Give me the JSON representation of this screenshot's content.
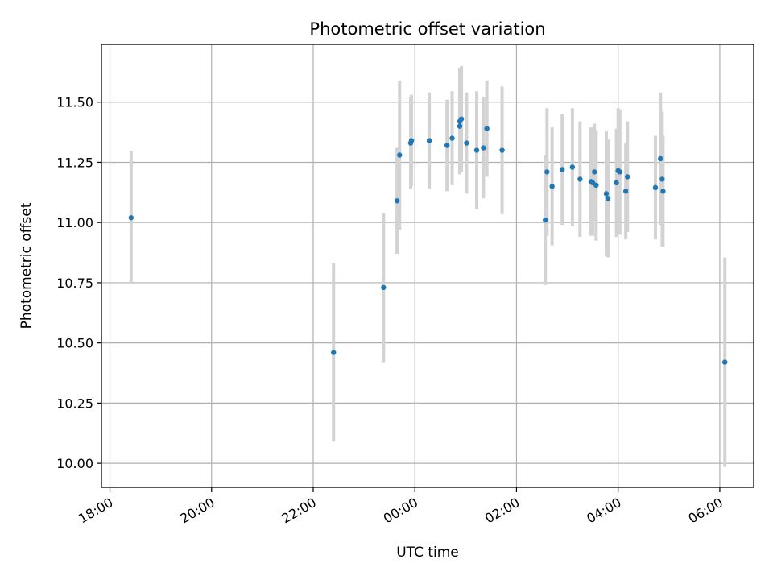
{
  "chart_data": {
    "type": "scatter",
    "title": "Photometric offset variation",
    "xlabel": "UTC time",
    "ylabel": "Photometric offset",
    "x_axis": {
      "type": "time",
      "range": [
        "17:50",
        "06:40"
      ],
      "ticks": [
        "18:00",
        "20:00",
        "22:00",
        "00:00",
        "02:00",
        "04:00",
        "06:00"
      ]
    },
    "y_axis": {
      "range": [
        9.9,
        11.74
      ],
      "ticks": [
        "10.00",
        "10.25",
        "10.50",
        "10.75",
        "11.00",
        "11.25",
        "11.50"
      ]
    },
    "grid": true,
    "marker_color": "#1f77b4",
    "errorbar_color": "#d3d3d3",
    "points": [
      {
        "time": "18:25",
        "y": 11.02,
        "err": 0.275
      },
      {
        "time": "22:24",
        "y": 10.46,
        "err": 0.37
      },
      {
        "time": "23:23",
        "y": 10.73,
        "err": 0.31
      },
      {
        "time": "23:39",
        "y": 11.09,
        "err": 0.22
      },
      {
        "time": "23:42",
        "y": 11.28,
        "err": 0.31
      },
      {
        "time": "23:55",
        "y": 11.33,
        "err": 0.19
      },
      {
        "time": "23:56",
        "y": 11.34,
        "err": 0.19
      },
      {
        "time": "00:17",
        "y": 11.34,
        "err": 0.2
      },
      {
        "time": "00:38",
        "y": 11.32,
        "err": 0.19
      },
      {
        "time": "00:44",
        "y": 11.35,
        "err": 0.195
      },
      {
        "time": "00:53",
        "y": 11.4,
        "err": 0.19
      },
      {
        "time": "00:53",
        "y": 11.42,
        "err": 0.22
      },
      {
        "time": "00:55",
        "y": 11.43,
        "err": 0.22
      },
      {
        "time": "01:01",
        "y": 11.33,
        "err": 0.21
      },
      {
        "time": "01:13",
        "y": 11.3,
        "err": 0.245
      },
      {
        "time": "01:21",
        "y": 11.31,
        "err": 0.21
      },
      {
        "time": "01:25",
        "y": 11.39,
        "err": 0.2
      },
      {
        "time": "01:43",
        "y": 11.3,
        "err": 0.265
      },
      {
        "time": "02:34",
        "y": 11.01,
        "err": 0.27
      },
      {
        "time": "02:36",
        "y": 11.21,
        "err": 0.265
      },
      {
        "time": "02:42",
        "y": 11.15,
        "err": 0.245
      },
      {
        "time": "02:54",
        "y": 11.22,
        "err": 0.23
      },
      {
        "time": "03:06",
        "y": 11.23,
        "err": 0.245
      },
      {
        "time": "03:15",
        "y": 11.18,
        "err": 0.24
      },
      {
        "time": "03:28",
        "y": 11.17,
        "err": 0.225
      },
      {
        "time": "03:30",
        "y": 11.165,
        "err": 0.22
      },
      {
        "time": "03:32",
        "y": 11.21,
        "err": 0.2
      },
      {
        "time": "03:34",
        "y": 11.155,
        "err": 0.23
      },
      {
        "time": "03:46",
        "y": 11.12,
        "err": 0.26
      },
      {
        "time": "03:48",
        "y": 11.1,
        "err": 0.245
      },
      {
        "time": "03:58",
        "y": 11.165,
        "err": 0.225
      },
      {
        "time": "04:00",
        "y": 11.215,
        "err": 0.26
      },
      {
        "time": "04:02",
        "y": 11.21,
        "err": 0.26
      },
      {
        "time": "04:09",
        "y": 11.13,
        "err": 0.2
      },
      {
        "time": "04:11",
        "y": 11.19,
        "err": 0.23
      },
      {
        "time": "04:44",
        "y": 11.145,
        "err": 0.215
      },
      {
        "time": "04:50",
        "y": 11.265,
        "err": 0.275
      },
      {
        "time": "04:52",
        "y": 11.18,
        "err": 0.28
      },
      {
        "time": "04:53",
        "y": 11.13,
        "err": 0.23
      },
      {
        "time": "06:06",
        "y": 10.42,
        "err": 0.435
      }
    ]
  }
}
